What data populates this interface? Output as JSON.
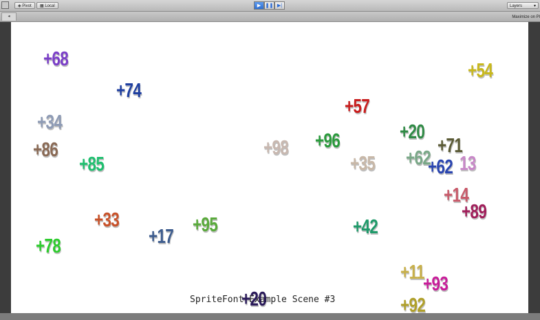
{
  "toolbar": {
    "pivot_label": "Pivot",
    "local_label": "Local",
    "layers_label": "Layers"
  },
  "tabstrip": {
    "maximize_label": "Maximize on Pl"
  },
  "scene": {
    "caption": "SpriteFont Example Scene #3",
    "numbers": [
      {
        "text": "+68",
        "color": "#7b3fc8"
      },
      {
        "text": "+74",
        "color": "#1f3fa0"
      },
      {
        "text": "+34",
        "color": "#8e9bb5"
      },
      {
        "text": "+86",
        "color": "#8a6a55"
      },
      {
        "text": "+85",
        "color": "#1fbf6f"
      },
      {
        "text": "+33",
        "color": "#c8522a"
      },
      {
        "text": "+17",
        "color": "#3d5c8e"
      },
      {
        "text": "+95",
        "color": "#5aaa3c"
      },
      {
        "text": "+78",
        "color": "#2ecc2e"
      },
      {
        "text": "+98",
        "color": "#c8b8b0"
      },
      {
        "text": "+96",
        "color": "#2a9a3c"
      },
      {
        "text": "+57",
        "color": "#c81e1e"
      },
      {
        "text": "+35",
        "color": "#c8b8a8"
      },
      {
        "text": "+20",
        "color": "#2f8a45"
      },
      {
        "text": "+62",
        "color": "#7aa888"
      },
      {
        "text": "+71",
        "color": "#5a5a35"
      },
      {
        "text": "+62",
        "color": "#2a45b0"
      },
      {
        "text": "13",
        "color": "#c888c8"
      },
      {
        "text": "+54",
        "color": "#c8b81e"
      },
      {
        "text": "+14",
        "color": "#c85a6a"
      },
      {
        "text": "+89",
        "color": "#a01e5a"
      },
      {
        "text": "+42",
        "color": "#1f9a6a"
      },
      {
        "text": "+11",
        "color": "#c8b04a"
      },
      {
        "text": "+93",
        "color": "#c81e9a"
      },
      {
        "text": "+92",
        "color": "#b0a02a"
      },
      {
        "text": "+20",
        "color": "#2a1a5a"
      }
    ]
  }
}
